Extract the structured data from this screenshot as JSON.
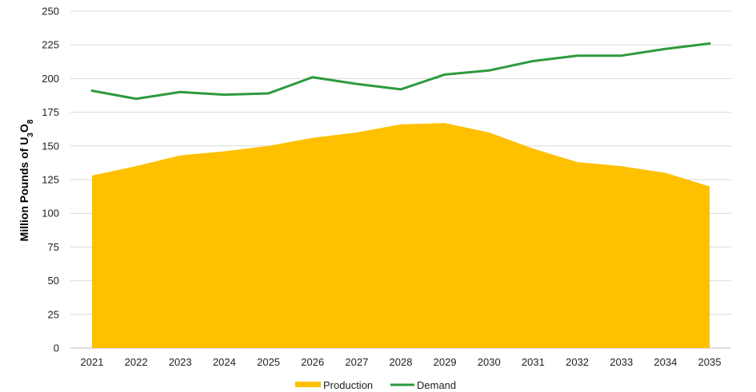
{
  "chart_data": {
    "type": "area",
    "title": "",
    "xlabel": "",
    "ylabel": {
      "main": "Million Pounds of U",
      "sub1": "3",
      "mid": "O",
      "sub2": "8"
    },
    "ylim": [
      0,
      250
    ],
    "yticks": [
      "0",
      "25",
      "50",
      "75",
      "100",
      "125",
      "150",
      "175",
      "200",
      "225",
      "250"
    ],
    "grid": true,
    "legend_position": "bottom",
    "categories": [
      "2021",
      "2022",
      "2023",
      "2024",
      "2025",
      "2026",
      "2027",
      "2028",
      "2029",
      "2030",
      "2031",
      "2032",
      "2033",
      "2034",
      "2035"
    ],
    "series": [
      {
        "name": "Production",
        "kind": "area",
        "color": "#FFC000",
        "values": [
          128,
          135,
          143,
          146,
          150,
          156,
          160,
          166,
          167,
          160,
          148,
          138,
          135,
          130,
          120
        ]
      },
      {
        "name": "Demand",
        "kind": "line",
        "color": "#2E9A3E",
        "values": [
          191,
          185,
          190,
          188,
          189,
          201,
          196,
          192,
          203,
          206,
          213,
          217,
          217,
          222,
          226
        ]
      }
    ]
  }
}
